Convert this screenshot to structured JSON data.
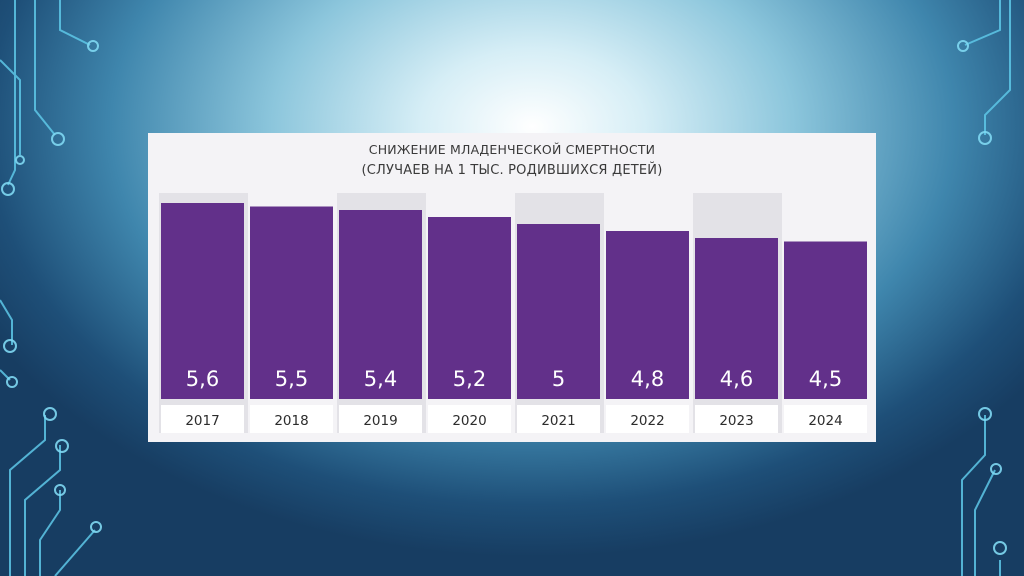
{
  "chart_data": {
    "type": "bar",
    "title": "СНИЖЕНИЕ МЛАДЕНЧЕСКОЙ СМЕРТНОСТИ",
    "subtitle": "(СЛУЧАЕВ НА 1 ТЫС. РОДИВШИХСЯ ДЕТЕЙ)",
    "categories": [
      "2017",
      "2018",
      "2019",
      "2020",
      "2021",
      "2022",
      "2023",
      "2024"
    ],
    "values": [
      5.6,
      5.5,
      5.4,
      5.2,
      5.0,
      4.8,
      4.6,
      4.5
    ],
    "value_labels": [
      "5,6",
      "5,5",
      "5,4",
      "5,2",
      "5",
      "4,8",
      "4,6",
      "4,5"
    ],
    "ylim": [
      0,
      5.6
    ],
    "grid": false,
    "legend": "none",
    "colors": {
      "bar": "#62308a",
      "bar_label": "#ffffff",
      "column_shade": "#e3e2e7",
      "panel": "#f4f3f6",
      "category_text": "#2c2c2c"
    }
  }
}
